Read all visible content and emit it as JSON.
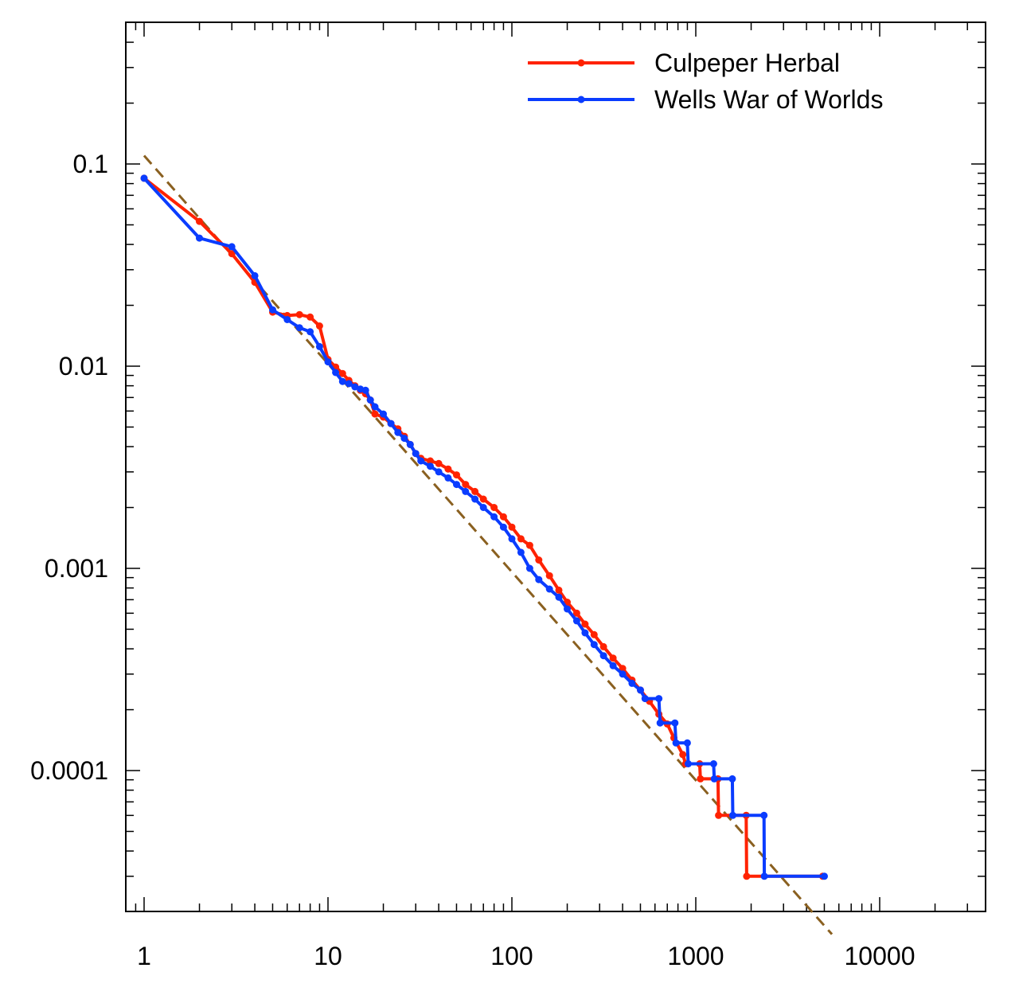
{
  "chart_data": {
    "type": "line",
    "title": "",
    "xlabel": "",
    "ylabel": "",
    "x_scale": "log",
    "y_scale": "log",
    "xlim": [
      0.9,
      35000
    ],
    "ylim": [
      2e-05,
      0.5
    ],
    "x_ticks": [
      1,
      10,
      100,
      1000,
      10000
    ],
    "x_tick_labels": [
      "1",
      "10",
      "100",
      "1000",
      "10000"
    ],
    "y_ticks": [
      0.0001,
      0.001,
      0.01,
      0.1
    ],
    "y_tick_labels": [
      "0.0001",
      "0.001",
      "0.01",
      "0.1"
    ],
    "grid": false,
    "legend_position": "top-right",
    "colors": {
      "culpeper": "#ff2200",
      "wells": "#0a3cff",
      "fit": "#8a6020"
    },
    "fit_line": {
      "style": "dashed",
      "points": [
        [
          1,
          0.11
        ],
        [
          5500,
          1.55e-05
        ]
      ]
    },
    "series": [
      {
        "name": "Culpeper Herbal",
        "color": "#ff2200",
        "points": [
          [
            1,
            0.085
          ],
          [
            2,
            0.052
          ],
          [
            3,
            0.036
          ],
          [
            4,
            0.026
          ],
          [
            5,
            0.0185
          ],
          [
            6,
            0.0178
          ],
          [
            7,
            0.018
          ],
          [
            8,
            0.0175
          ],
          [
            9,
            0.0158
          ],
          [
            10,
            0.0108
          ],
          [
            11,
            0.0099
          ],
          [
            12,
            0.0092
          ],
          [
            13,
            0.0085
          ],
          [
            14,
            0.008
          ],
          [
            15,
            0.0076
          ],
          [
            16,
            0.0073
          ],
          [
            17,
            0.0068
          ],
          [
            18,
            0.0058
          ],
          [
            20,
            0.0056
          ],
          [
            22,
            0.0052
          ],
          [
            24,
            0.0049
          ],
          [
            26,
            0.0045
          ],
          [
            28,
            0.0041
          ],
          [
            30,
            0.0037
          ],
          [
            32,
            0.0035
          ],
          [
            36,
            0.0034
          ],
          [
            40,
            0.0033
          ],
          [
            45,
            0.0031
          ],
          [
            50,
            0.0029
          ],
          [
            56,
            0.0026
          ],
          [
            63,
            0.0024
          ],
          [
            70,
            0.0022
          ],
          [
            80,
            0.002
          ],
          [
            90,
            0.0018
          ],
          [
            100,
            0.0016
          ],
          [
            112,
            0.0014
          ],
          [
            125,
            0.0013
          ],
          [
            140,
            0.0011
          ],
          [
            160,
            0.00092
          ],
          [
            180,
            0.00078
          ],
          [
            200,
            0.00068
          ],
          [
            225,
            0.0006
          ],
          [
            250,
            0.00053
          ],
          [
            280,
            0.00047
          ],
          [
            315,
            0.00041
          ],
          [
            355,
            0.00036
          ],
          [
            400,
            0.00032
          ],
          [
            450,
            0.00028
          ],
          [
            500,
            0.00025
          ],
          [
            560,
            0.00022
          ],
          [
            630,
            0.00019
          ],
          [
            700,
            0.00017
          ],
          [
            760,
            0.000145
          ],
          [
            850,
            0.00012
          ],
          [
            880,
            0.000108
          ],
          [
            1050,
            0.000108
          ],
          [
            1060,
            9.1e-05
          ],
          [
            1320,
            9.1e-05
          ],
          [
            1330,
            6e-05
          ],
          [
            1880,
            6e-05
          ],
          [
            1890,
            3e-05
          ],
          [
            4900,
            3e-05
          ]
        ]
      },
      {
        "name": "Wells War of Worlds",
        "color": "#0a3cff",
        "points": [
          [
            1,
            0.085
          ],
          [
            2,
            0.043
          ],
          [
            3,
            0.039
          ],
          [
            4,
            0.028
          ],
          [
            5,
            0.019
          ],
          [
            6,
            0.017
          ],
          [
            7,
            0.0155
          ],
          [
            8,
            0.0148
          ],
          [
            9,
            0.0125
          ],
          [
            10,
            0.0105
          ],
          [
            11,
            0.0093
          ],
          [
            12,
            0.0084
          ],
          [
            13,
            0.0082
          ],
          [
            14,
            0.0079
          ],
          [
            15,
            0.0077
          ],
          [
            16,
            0.0076
          ],
          [
            17,
            0.0068
          ],
          [
            18,
            0.0063
          ],
          [
            20,
            0.0058
          ],
          [
            22,
            0.0052
          ],
          [
            24,
            0.0047
          ],
          [
            26,
            0.0044
          ],
          [
            28,
            0.0041
          ],
          [
            30,
            0.0037
          ],
          [
            32,
            0.0034
          ],
          [
            36,
            0.0032
          ],
          [
            40,
            0.003
          ],
          [
            45,
            0.0028
          ],
          [
            50,
            0.0026
          ],
          [
            56,
            0.0024
          ],
          [
            63,
            0.0022
          ],
          [
            70,
            0.002
          ],
          [
            80,
            0.0018
          ],
          [
            90,
            0.0016
          ],
          [
            100,
            0.0014
          ],
          [
            112,
            0.0012
          ],
          [
            125,
            0.001
          ],
          [
            140,
            0.00088
          ],
          [
            160,
            0.00079
          ],
          [
            180,
            0.00072
          ],
          [
            200,
            0.00063
          ],
          [
            225,
            0.00055
          ],
          [
            250,
            0.00048
          ],
          [
            280,
            0.00042
          ],
          [
            315,
            0.00037
          ],
          [
            355,
            0.00033
          ],
          [
            400,
            0.0003
          ],
          [
            450,
            0.00027
          ],
          [
            500,
            0.00025
          ],
          [
            530,
            0.000227
          ],
          [
            630,
            0.000227
          ],
          [
            640,
            0.000172
          ],
          [
            770,
            0.000172
          ],
          [
            780,
            0.000137
          ],
          [
            900,
            0.000137
          ],
          [
            910,
            0.000108
          ],
          [
            1250,
            0.000108
          ],
          [
            1260,
            9.1e-05
          ],
          [
            1580,
            9.1e-05
          ],
          [
            1590,
            6e-05
          ],
          [
            2350,
            6e-05
          ],
          [
            2360,
            3e-05
          ],
          [
            5000,
            3e-05
          ]
        ]
      }
    ]
  }
}
